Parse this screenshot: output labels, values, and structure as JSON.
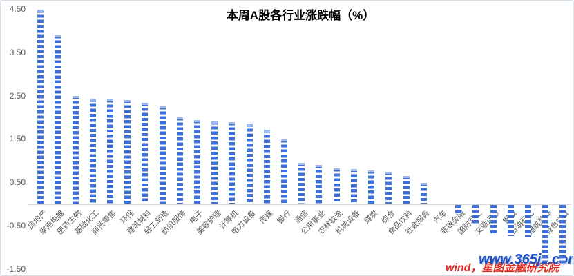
{
  "chart_data": {
    "type": "bar",
    "title": "本周A股各行业涨跌幅（%）",
    "categories": [
      "房地产",
      "家用电器",
      "医药生物",
      "基础化工",
      "商贸零售",
      "环保",
      "建筑材料",
      "轻工制造",
      "纺织服饰",
      "电子",
      "美容护理",
      "计算机",
      "电力设备",
      "传媒",
      "银行",
      "通信",
      "公用事业",
      "农林牧渔",
      "机械设备",
      "煤炭",
      "综合",
      "食品饮料",
      "社会服务",
      "汽车",
      "非银金融",
      "国防军工",
      "交通运输",
      "钢铁",
      "石油石化",
      "建筑装饰",
      "有色金属"
    ],
    "values": [
      4.49,
      3.89,
      2.5,
      2.43,
      2.41,
      2.39,
      2.33,
      2.26,
      2.0,
      1.93,
      1.91,
      1.88,
      1.86,
      1.71,
      1.49,
      0.95,
      0.9,
      0.82,
      0.81,
      0.78,
      0.74,
      0.64,
      0.48,
      0.0,
      -0.21,
      -0.45,
      -0.68,
      -0.72,
      -0.75,
      -1.33,
      -1.37
    ],
    "xlabel": "",
    "ylabel": "",
    "ylim": [
      -1.5,
      4.5
    ],
    "y_tick_step": 1.0,
    "grid": false,
    "legend": false,
    "bar_style": "horizontal-striped-blue",
    "x_label_rotation_deg": 45
  },
  "y_axis": {
    "ticks": [
      "4.50",
      "3.50",
      "2.50",
      "1.50",
      "0.50",
      "-0.50",
      "-1.50"
    ]
  },
  "watermarks": {
    "source": "wind，星图金融研究院",
    "site": "www.365jz.com"
  },
  "colors": {
    "bar_blue": "#3D6FD8",
    "bar_cap": "#A9C2EF",
    "axis_line": "#D9D9D9",
    "tick_text": "#595959",
    "title_text": "#000000",
    "watermark_red": "#E02B20",
    "watermark_blue": "#1D50C9"
  }
}
